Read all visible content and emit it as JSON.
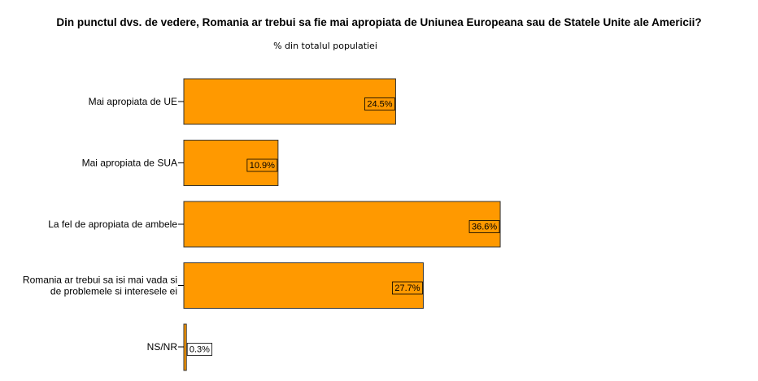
{
  "chart_data": {
    "type": "bar",
    "orientation": "horizontal",
    "title": "Din punctul dvs. de vedere, Romania ar trebui sa fie mai apropiata de Uniunea Europeana sau de Statele Unite ale Americii?",
    "subtitle": "% din totalul populatiei",
    "categories": [
      [
        "Mai apropiata de UE"
      ],
      [
        "Mai apropiata de SUA"
      ],
      [
        "La fel de apropiata de ambele"
      ],
      [
        "Romania ar trebui sa isi mai vada si",
        "de problemele si interesele ei"
      ],
      [
        "NS/NR"
      ]
    ],
    "values": [
      24.5,
      10.9,
      36.6,
      27.7,
      0.3
    ],
    "value_labels": [
      "24.5%",
      "10.9%",
      "36.6%",
      "27.7%",
      "0.3%"
    ],
    "bar_color": "#FF9900",
    "bar_edge_color": "#333333",
    "xlim": [
      0,
      40
    ],
    "grid": false,
    "legend": "none"
  }
}
